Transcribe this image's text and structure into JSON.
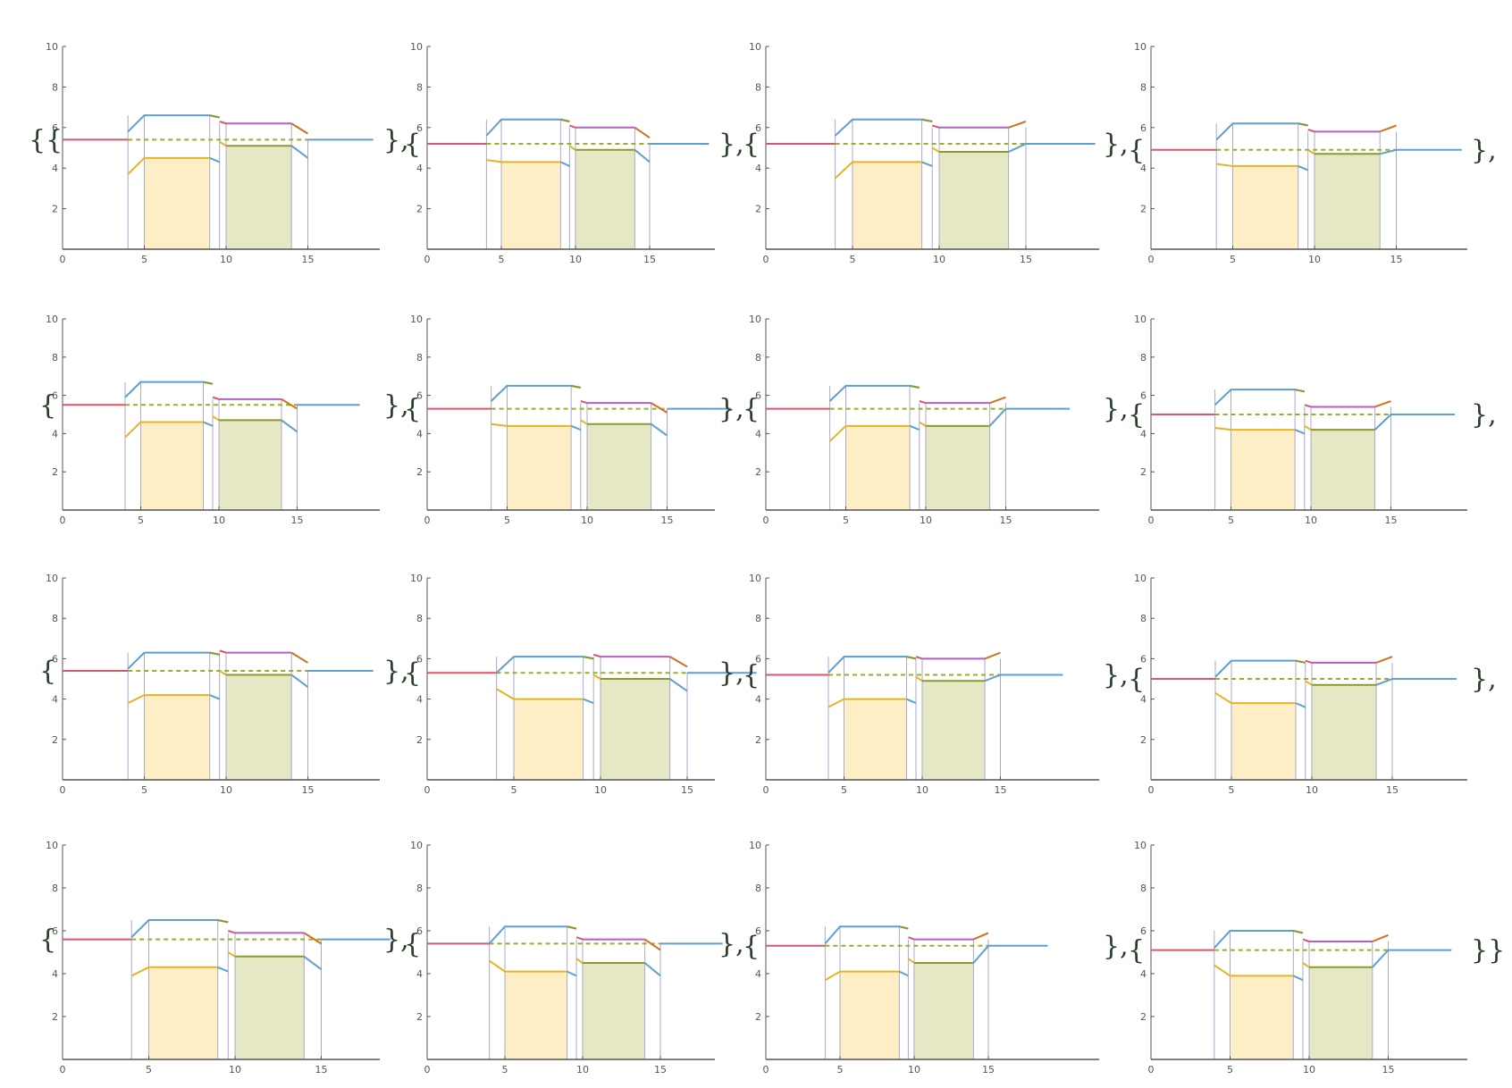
{
  "colors": {
    "axis": "#555555",
    "blue": "#5e9fd0",
    "red": "#d8566e",
    "gold": "#e6b422",
    "olive": "#8c9a2a",
    "purple": "#b35fc4",
    "orange": "#d0701e",
    "dashed": "#9aae2e",
    "vertical": "#a9a9cc",
    "fill_left": "#fdeec6",
    "fill_right": "#e6e8c5"
  },
  "separators": {
    "open_first": "{{",
    "open": "{",
    "close_comma": "},",
    "close_last": "}}"
  },
  "chart_data": {
    "type": "line",
    "grid": "none",
    "x_axis": {
      "range": [
        0,
        19
      ],
      "ticks": [
        "0",
        "5",
        "10",
        "15"
      ]
    },
    "y_axis": {
      "range": [
        0,
        10
      ],
      "ticks": [
        "2",
        "4",
        "6",
        "8",
        "10"
      ]
    },
    "panels": [
      {
        "base": 5.4,
        "top_left": 6.6,
        "top_right": 6.2,
        "bot_left": 4.5,
        "bot_right": 5.1,
        "right_end": "down",
        "low_start": 3.7
      },
      {
        "base": 5.2,
        "top_left": 6.4,
        "top_right": 6.0,
        "bot_left": 4.3,
        "bot_right": 4.9,
        "right_end": "down",
        "low_start": 4.4
      },
      {
        "base": 5.2,
        "top_left": 6.4,
        "top_right": 6.0,
        "bot_left": 4.3,
        "bot_right": 4.8,
        "right_end": "up",
        "low_start": 3.5
      },
      {
        "base": 4.9,
        "top_left": 6.2,
        "top_right": 5.8,
        "bot_left": 4.1,
        "bot_right": 4.7,
        "right_end": "up",
        "low_start": 4.2
      },
      {
        "base": 5.5,
        "top_left": 6.7,
        "top_right": 5.8,
        "bot_left": 4.6,
        "bot_right": 4.7,
        "right_end": "down",
        "low_start": 3.8
      },
      {
        "base": 5.3,
        "top_left": 6.5,
        "top_right": 5.6,
        "bot_left": 4.4,
        "bot_right": 4.5,
        "right_end": "down",
        "low_start": 4.5
      },
      {
        "base": 5.3,
        "top_left": 6.5,
        "top_right": 5.6,
        "bot_left": 4.4,
        "bot_right": 4.4,
        "right_end": "up",
        "low_start": 3.6
      },
      {
        "base": 5.0,
        "top_left": 6.3,
        "top_right": 5.4,
        "bot_left": 4.2,
        "bot_right": 4.2,
        "right_end": "up",
        "low_start": 4.3
      },
      {
        "base": 5.4,
        "top_left": 6.3,
        "top_right": 6.3,
        "bot_left": 4.2,
        "bot_right": 5.2,
        "right_end": "down",
        "low_start": 3.8
      },
      {
        "base": 5.3,
        "top_left": 6.1,
        "top_right": 6.1,
        "bot_left": 4.0,
        "bot_right": 5.0,
        "right_end": "down",
        "low_start": 4.5
      },
      {
        "base": 5.2,
        "top_left": 6.1,
        "top_right": 6.0,
        "bot_left": 4.0,
        "bot_right": 4.9,
        "right_end": "up",
        "low_start": 3.6
      },
      {
        "base": 5.0,
        "top_left": 5.9,
        "top_right": 5.8,
        "bot_left": 3.8,
        "bot_right": 4.7,
        "right_end": "up",
        "low_start": 4.3
      },
      {
        "base": 5.6,
        "top_left": 6.5,
        "top_right": 5.9,
        "bot_left": 4.3,
        "bot_right": 4.8,
        "right_end": "down",
        "low_start": 3.9
      },
      {
        "base": 5.4,
        "top_left": 6.2,
        "top_right": 5.6,
        "bot_left": 4.1,
        "bot_right": 4.5,
        "right_end": "down",
        "low_start": 4.6
      },
      {
        "base": 5.3,
        "top_left": 6.2,
        "top_right": 5.6,
        "bot_left": 4.1,
        "bot_right": 4.5,
        "right_end": "up",
        "low_start": 3.7
      },
      {
        "base": 5.1,
        "top_left": 6.0,
        "top_right": 5.5,
        "bot_left": 3.9,
        "bot_right": 4.3,
        "right_end": "up",
        "low_start": 4.4
      }
    ]
  }
}
